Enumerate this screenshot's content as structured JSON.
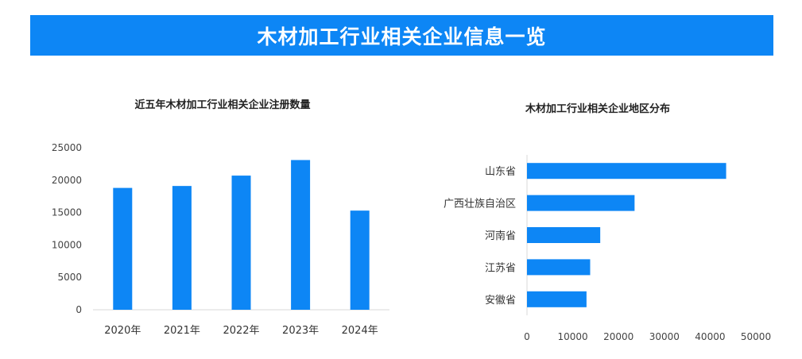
{
  "header": {
    "title": "木材加工行业相关企业信息一览"
  },
  "colors": {
    "banner": "#0d86f5",
    "bar": "#0d86f5",
    "axis": "#d9d9d9"
  },
  "chart_data": [
    {
      "type": "bar",
      "title": "近五年木材加工行业相关企业注册数量",
      "categories": [
        "2020年",
        "2021年",
        "2022年",
        "2023年",
        "2024年"
      ],
      "values": [
        18800,
        19100,
        20700,
        23100,
        15300
      ],
      "ylim": [
        0,
        25000
      ],
      "yticks": [
        "0",
        "5000",
        "10000",
        "15000",
        "20000",
        "25000"
      ],
      "grid": false
    },
    {
      "type": "bar",
      "orientation": "horizontal",
      "title": "木材加工行业相关企业地区分布",
      "categories": [
        "山东省",
        "广西壮族自治区",
        "河南省",
        "江苏省",
        "安徽省"
      ],
      "values": [
        43500,
        23500,
        16000,
        13800,
        13000
      ],
      "xlim": [
        0,
        50000
      ],
      "xticks": [
        "0",
        "10000",
        "20000",
        "30000",
        "40000",
        "50000"
      ],
      "grid": false
    }
  ]
}
